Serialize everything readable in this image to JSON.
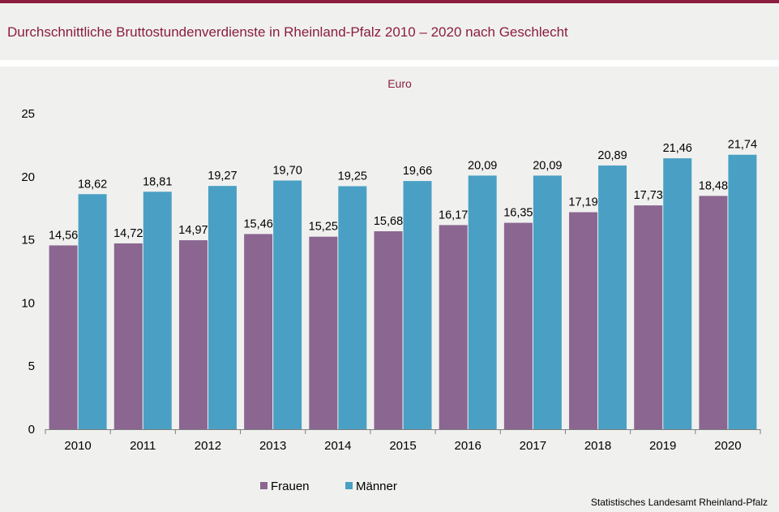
{
  "title": "Durchschnittliche Bruttostundenverdienste in Rheinland-Pfalz 2010 – 2020 nach Geschlecht",
  "source": "Statistisches Landesamt  Rheinland-Pfalz",
  "colors": {
    "title": "#8b1d3f",
    "frauen": "#8a6691",
    "maenner": "#4aa0c4"
  },
  "chart_data": {
    "type": "bar",
    "unit_label": "Euro",
    "categories": [
      "2010",
      "2011",
      "2012",
      "2013",
      "2014",
      "2015",
      "2016",
      "2017",
      "2018",
      "2019",
      "2020"
    ],
    "series": [
      {
        "name": "Frauen",
        "values": [
          14.56,
          14.72,
          14.97,
          15.46,
          15.25,
          15.68,
          16.17,
          16.35,
          17.19,
          17.73,
          18.48
        ],
        "labels": [
          "14,56",
          "14,72",
          "14,97",
          "15,46",
          "15,25",
          "15,68",
          "16,17",
          "16,35",
          "17,19",
          "17,73",
          "18,48"
        ]
      },
      {
        "name": "Männer",
        "values": [
          18.62,
          18.81,
          19.27,
          19.7,
          19.25,
          19.66,
          20.09,
          20.09,
          20.89,
          21.46,
          21.74
        ],
        "labels": [
          "18,62",
          "18,81",
          "19,27",
          "19,70",
          "19,25",
          "19,66",
          "20,09",
          "20,09",
          "20,89",
          "21,46",
          "21,74"
        ]
      }
    ],
    "yticks": [
      "0",
      "5",
      "10",
      "15",
      "20",
      "25"
    ],
    "ylim": [
      0,
      25
    ],
    "grid": false,
    "legend": "bottom"
  }
}
